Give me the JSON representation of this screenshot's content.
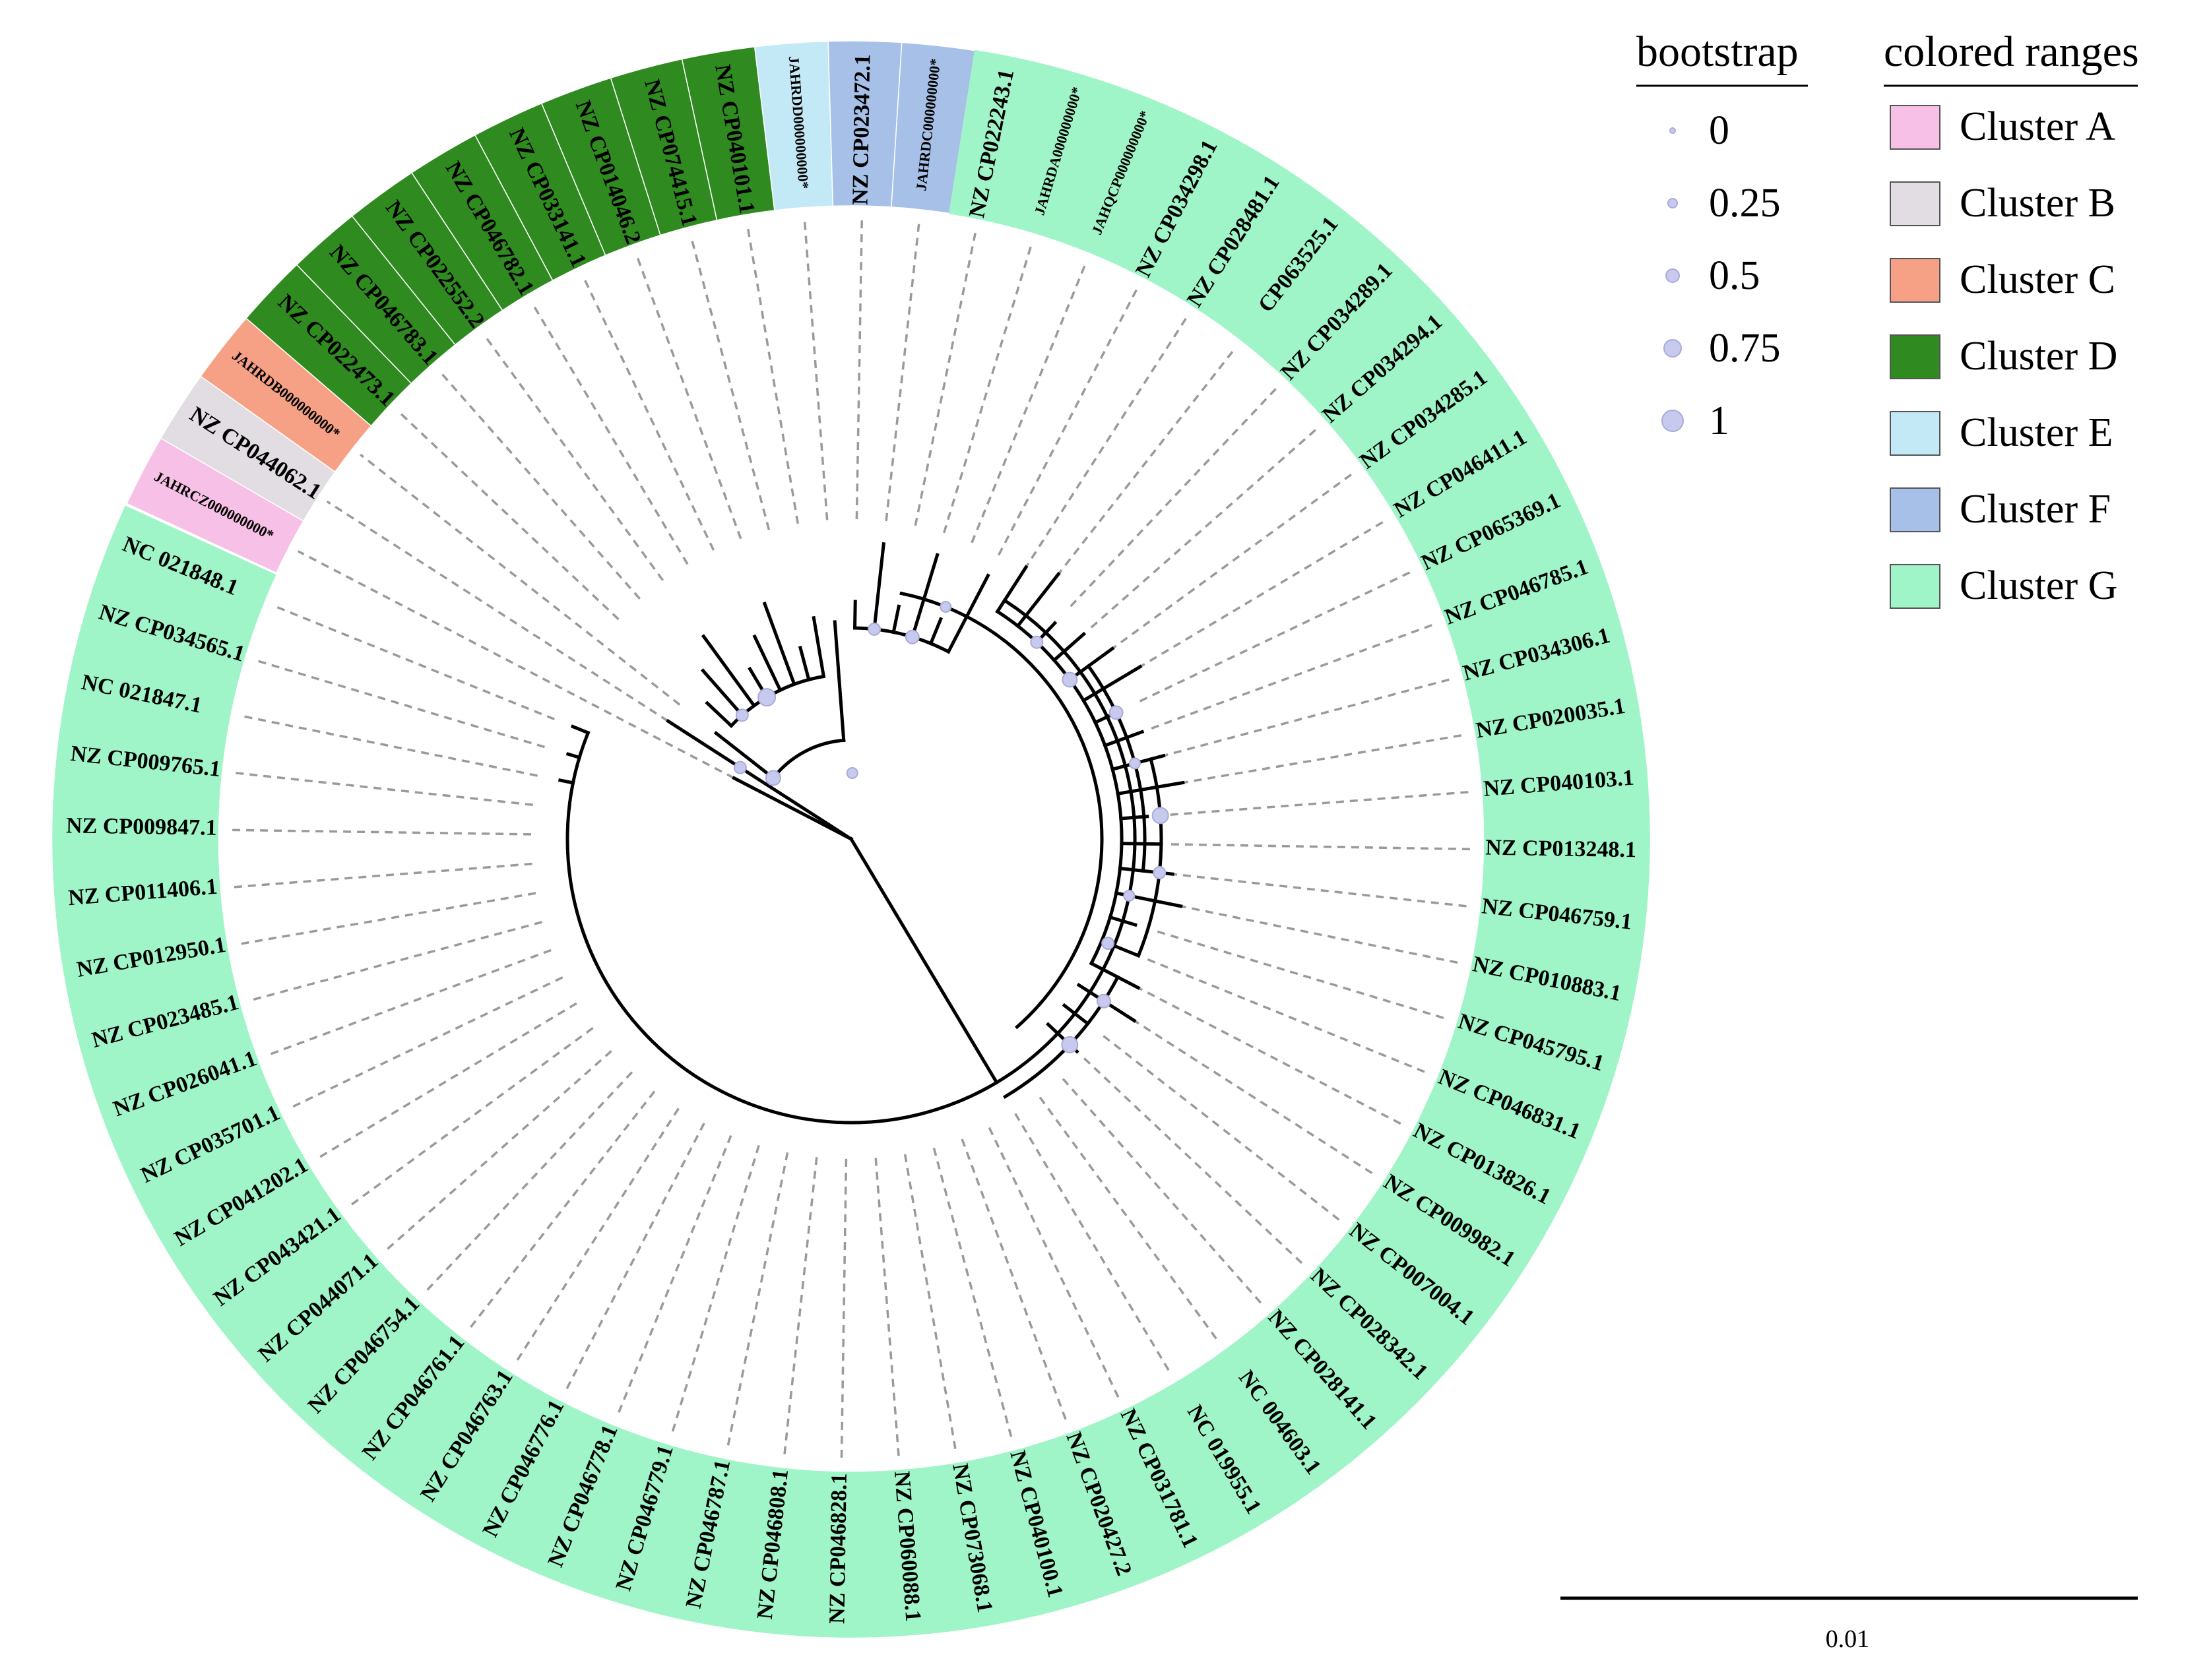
{
  "legend": {
    "bootstrap_title": "bootstrap",
    "bootstrap_levels": [
      "0",
      "0.25",
      "0.5",
      "0.75",
      "1"
    ],
    "ranges_title": "colored ranges",
    "clusters": [
      {
        "id": "A",
        "name": "Cluster A",
        "color": "#f7c0e6"
      },
      {
        "id": "B",
        "name": "Cluster B",
        "color": "#e2dde3"
      },
      {
        "id": "C",
        "name": "Cluster C",
        "color": "#f6a186"
      },
      {
        "id": "D",
        "name": "Cluster D",
        "color": "#2f8a1f"
      },
      {
        "id": "E",
        "name": "Cluster E",
        "color": "#c3e8f6"
      },
      {
        "id": "F",
        "name": "Cluster F",
        "color": "#a6c0e8"
      },
      {
        "id": "G",
        "name": "Cluster G",
        "color": "#9ff5c7"
      }
    ]
  },
  "scale_bar": {
    "label": "0.01"
  },
  "leaves": [
    {
      "name": "JAHRCZ000000000*",
      "cluster": "A"
    },
    {
      "name": "NZ CP044062.1",
      "cluster": "B"
    },
    {
      "name": "JAHRDB000000000*",
      "cluster": "C"
    },
    {
      "name": "NZ CP022473.1",
      "cluster": "D"
    },
    {
      "name": "NZ CP046783.1",
      "cluster": "D"
    },
    {
      "name": "NZ CP022552.2",
      "cluster": "D"
    },
    {
      "name": "NZ CP046782.1",
      "cluster": "D"
    },
    {
      "name": "NZ CP033141.1",
      "cluster": "D"
    },
    {
      "name": "NZ CP014046.2",
      "cluster": "D"
    },
    {
      "name": "NZ CP074415.1",
      "cluster": "D"
    },
    {
      "name": "NZ CP040101.1",
      "cluster": "D"
    },
    {
      "name": "JAHRDD000000000*",
      "cluster": "E"
    },
    {
      "name": "NZ CP023472.1",
      "cluster": "F"
    },
    {
      "name": "JAHRDC000000000*",
      "cluster": "F"
    },
    {
      "name": "NZ CP022243.1",
      "cluster": "G"
    },
    {
      "name": "JAHRDA000000000*",
      "cluster": "G"
    },
    {
      "name": "JAHQCP000000000*",
      "cluster": "G"
    },
    {
      "name": "NZ CP034298.1",
      "cluster": "G"
    },
    {
      "name": "NZ CP028481.1",
      "cluster": "G"
    },
    {
      "name": "CP063525.1",
      "cluster": "G"
    },
    {
      "name": "NZ CP034289.1",
      "cluster": "G"
    },
    {
      "name": "NZ CP034294.1",
      "cluster": "G"
    },
    {
      "name": "NZ CP034285.1",
      "cluster": "G"
    },
    {
      "name": "NZ CP046411.1",
      "cluster": "G"
    },
    {
      "name": "NZ CP065369.1",
      "cluster": "G"
    },
    {
      "name": "NZ CP046785.1",
      "cluster": "G"
    },
    {
      "name": "NZ CP034306.1",
      "cluster": "G"
    },
    {
      "name": "NZ CP020035.1",
      "cluster": "G"
    },
    {
      "name": "NZ CP040103.1",
      "cluster": "G"
    },
    {
      "name": "NZ CP013248.1",
      "cluster": "G"
    },
    {
      "name": "NZ CP046759.1",
      "cluster": "G"
    },
    {
      "name": "NZ CP010883.1",
      "cluster": "G"
    },
    {
      "name": "NZ CP045795.1",
      "cluster": "G"
    },
    {
      "name": "NZ CP046831.1",
      "cluster": "G"
    },
    {
      "name": "NZ CP013826.1",
      "cluster": "G"
    },
    {
      "name": "NZ CP009982.1",
      "cluster": "G"
    },
    {
      "name": "NZ CP007004.1",
      "cluster": "G"
    },
    {
      "name": "NZ CP028342.1",
      "cluster": "G"
    },
    {
      "name": "NZ CP028141.1",
      "cluster": "G"
    },
    {
      "name": "NC 004603.1",
      "cluster": "G"
    },
    {
      "name": "NC 019955.1",
      "cluster": "G"
    },
    {
      "name": "NZ CP031781.1",
      "cluster": "G"
    },
    {
      "name": "NZ CP020427.2",
      "cluster": "G"
    },
    {
      "name": "NZ CP040100.1",
      "cluster": "G"
    },
    {
      "name": "NZ CP073068.1",
      "cluster": "G"
    },
    {
      "name": "NZ CP060088.1",
      "cluster": "G"
    },
    {
      "name": "NZ CP046828.1",
      "cluster": "G"
    },
    {
      "name": "NZ CP046808.1",
      "cluster": "G"
    },
    {
      "name": "NZ CP046787.1",
      "cluster": "G"
    },
    {
      "name": "NZ CP046779.1",
      "cluster": "G"
    },
    {
      "name": "NZ CP046778.1",
      "cluster": "G"
    },
    {
      "name": "NZ CP046776.1",
      "cluster": "G"
    },
    {
      "name": "NZ CP046763.1",
      "cluster": "G"
    },
    {
      "name": "NZ CP046761.1",
      "cluster": "G"
    },
    {
      "name": "NZ CP046754.1",
      "cluster": "G"
    },
    {
      "name": "NZ CP044071.1",
      "cluster": "G"
    },
    {
      "name": "NZ CP043421.1",
      "cluster": "G"
    },
    {
      "name": "NZ CP041202.1",
      "cluster": "G"
    },
    {
      "name": "NZ CP035701.1",
      "cluster": "G"
    },
    {
      "name": "NZ CP026041.1",
      "cluster": "G"
    },
    {
      "name": "NZ CP023485.1",
      "cluster": "G"
    },
    {
      "name": "NZ CP012950.1",
      "cluster": "G"
    },
    {
      "name": "NZ CP011406.1",
      "cluster": "G"
    },
    {
      "name": "NZ CP009847.1",
      "cluster": "G"
    },
    {
      "name": "NZ CP009765.1",
      "cluster": "G"
    },
    {
      "name": "NC 021847.1",
      "cluster": "G"
    },
    {
      "name": "NZ CP034565.1",
      "cluster": "G"
    },
    {
      "name": "NC 021848.1",
      "cluster": "G"
    }
  ]
}
